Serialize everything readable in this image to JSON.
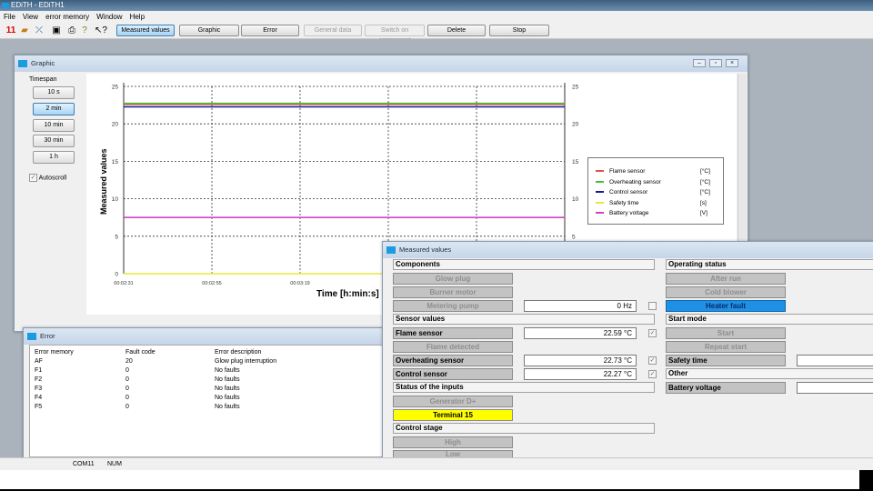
{
  "app": {
    "title": "EDiTH - EDiTH1"
  },
  "menu": [
    "File",
    "View",
    "error memory",
    "Window",
    "Help"
  ],
  "toolbar": {
    "icons": [
      "red-numbers-icon",
      "open-folder-icon",
      "connect-icon",
      "save-icon",
      "print-icon",
      "help-icon",
      "context-help-icon"
    ],
    "buttons": [
      {
        "label": "Measured values",
        "state": "active"
      },
      {
        "label": "Graphic",
        "state": "normal"
      },
      {
        "label": "Error",
        "state": "normal"
      },
      {
        "label": "General data",
        "state": "disabled"
      },
      {
        "label": "Switch on component",
        "state": "disabled"
      },
      {
        "label": "Delete",
        "state": "normal"
      },
      {
        "label": "Stop",
        "state": "normal"
      }
    ]
  },
  "graphic": {
    "title": "Graphic",
    "timespan_label": "Timespan",
    "timespans": [
      "10 s",
      "2 min",
      "10 min",
      "30 min",
      "1 h"
    ],
    "selected_timespan": "2 min",
    "autoscroll_label": "Autoscroll",
    "autoscroll": true
  },
  "chart_data": {
    "type": "line",
    "ylabel": "Measured values",
    "xlabel": "Time [h:min:s]",
    "ylim": [
      0,
      25
    ],
    "yticks": [
      0,
      5,
      10,
      15,
      20,
      25
    ],
    "xticks": [
      "00:02:31",
      "00:02:55",
      "00:03:19"
    ],
    "xlim": [
      "00:02:31",
      "00:04:31"
    ],
    "grid": true,
    "legend_position": "right",
    "series": [
      {
        "name": "Flame sensor",
        "unit": "[°C]",
        "color": "#d9534f",
        "values": [
          22.59,
          22.59
        ]
      },
      {
        "name": "Overheating sensor",
        "unit": "[°C]",
        "color": "#4cbb3c",
        "values": [
          22.73,
          22.73
        ]
      },
      {
        "name": "Control sensor",
        "unit": "[°C]",
        "color": "#1a1a8c",
        "values": [
          22.27,
          22.27
        ]
      },
      {
        "name": "Safety time",
        "unit": "[s]",
        "color": "#e8e83a",
        "values": [
          0,
          0
        ]
      },
      {
        "name": "Battery voltage",
        "unit": "[V]",
        "color": "#cc44cc",
        "values": [
          7.5,
          7.5
        ]
      }
    ]
  },
  "error": {
    "title": "Error",
    "columns": [
      "Error memory",
      "Fault code",
      "Error description"
    ],
    "rows": [
      [
        "AF",
        "20",
        "Glow plug interruption"
      ],
      [
        "F1",
        "0",
        "No faults"
      ],
      [
        "F2",
        "0",
        "No faults"
      ],
      [
        "F3",
        "0",
        "No faults"
      ],
      [
        "F4",
        "0",
        "No faults"
      ],
      [
        "F5",
        "0",
        "No faults"
      ]
    ]
  },
  "measured": {
    "title": "Measured values",
    "components": "Components",
    "glow_plug": "Glow plug",
    "burner_motor": "Burner motor",
    "metering_pump": "Metering pump",
    "metering_value": "0 Hz",
    "sensor_values": "Sensor values",
    "flame_sensor": "Flame sensor",
    "flame_value": "22.59 °C",
    "flame_detected": "Flame detected",
    "overheating_sensor": "Overheating sensor",
    "overheating_value": "22.73 °C",
    "control_sensor": "Control sensor",
    "control_value": "22.27 °C",
    "status_inputs": "Status of the inputs",
    "generator": "Generator D+",
    "terminal": "Terminal 15",
    "control_stage": "Control stage",
    "high": "High",
    "low": "Low",
    "operating_status": "Operating status",
    "after_run": "After run",
    "cold_blower": "Cold blower",
    "heater_fault": "Heater fault",
    "start_mode": "Start mode",
    "start": "Start",
    "repeat_start": "Repeat start",
    "safety_time": "Safety time",
    "other": "Other",
    "battery_voltage": "Battery voltage",
    "colors": {
      "heater_fault": "#1e90e6",
      "terminal": "#ffff00"
    }
  },
  "statusbar": {
    "port": "COM11",
    "num": "NUM"
  }
}
